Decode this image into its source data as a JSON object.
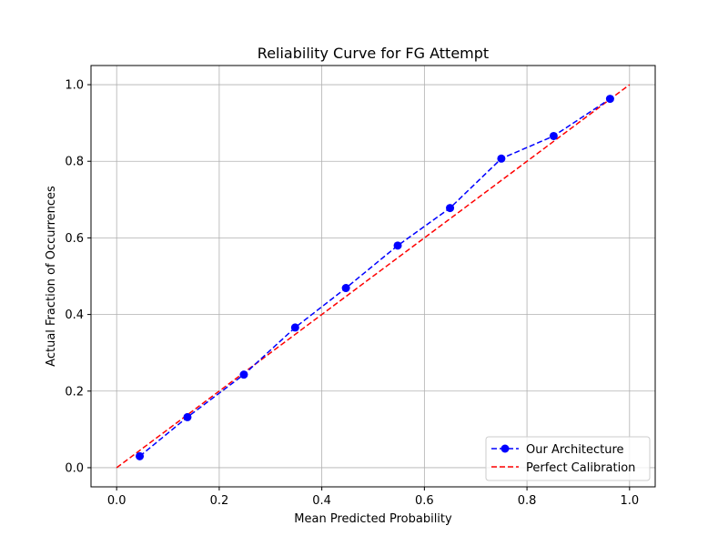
{
  "chart_data": {
    "type": "line",
    "title": "Reliability Curve for FG Attempt",
    "xlabel": "Mean Predicted Probability",
    "ylabel": "Actual Fraction of Occurrences",
    "xlim": [
      -0.05,
      1.05
    ],
    "ylim": [
      -0.05,
      1.05
    ],
    "xticks": [
      0.0,
      0.2,
      0.4,
      0.6,
      0.8,
      1.0
    ],
    "yticks": [
      0.0,
      0.2,
      0.4,
      0.6,
      0.8,
      1.0
    ],
    "xtick_labels": [
      "0.0",
      "0.2",
      "0.4",
      "0.6",
      "0.8",
      "1.0"
    ],
    "ytick_labels": [
      "0.0",
      "0.2",
      "0.4",
      "0.6",
      "0.8",
      "1.0"
    ],
    "grid": true,
    "legend_position": "lower-right",
    "series": [
      {
        "name": "Our Architecture",
        "color": "#0000ff",
        "style": "dashed",
        "marker": "circle",
        "x": [
          0.045,
          0.138,
          0.248,
          0.348,
          0.447,
          0.548,
          0.65,
          0.75,
          0.852,
          0.962
        ],
        "y": [
          0.03,
          0.132,
          0.243,
          0.366,
          0.469,
          0.58,
          0.678,
          0.807,
          0.866,
          0.963
        ]
      },
      {
        "name": "Perfect Calibration",
        "color": "#ff0000",
        "style": "dashed",
        "marker": "none",
        "x": [
          0.0,
          1.0
        ],
        "y": [
          0.0,
          1.0
        ]
      }
    ]
  }
}
